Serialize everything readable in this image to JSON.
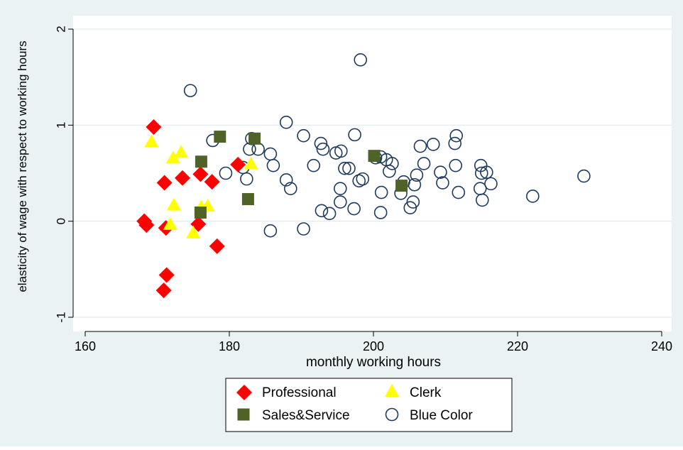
{
  "chart_data": {
    "type": "scatter",
    "title": "",
    "xlabel": "monthly working hours",
    "ylabel": "elasticity of wage with respect to working hours",
    "xlim": [
      160,
      240
    ],
    "ylim": [
      -1,
      2
    ],
    "x_ticks": [
      160,
      180,
      200,
      220,
      240
    ],
    "y_ticks": [
      -1,
      0,
      1,
      2
    ],
    "grid": "horizontal",
    "legend_position": "bottom",
    "colors": {
      "page_background": "#eaf2f3",
      "plot_background": "#ffffff",
      "gridline": "#e4eef0",
      "axis": "#000000"
    },
    "series": [
      {
        "name": "Professional",
        "marker": "diamond",
        "color": "#ff0000",
        "points": [
          [
            169.5,
            0.98
          ],
          [
            168.2,
            0.0
          ],
          [
            168.5,
            -0.04
          ],
          [
            171.0,
            0.4
          ],
          [
            171.2,
            -0.07
          ],
          [
            171.3,
            -0.56
          ],
          [
            170.9,
            -0.72
          ],
          [
            173.5,
            0.45
          ],
          [
            175.7,
            -0.03
          ],
          [
            176.0,
            0.49
          ],
          [
            177.6,
            0.41
          ],
          [
            178.3,
            -0.26
          ],
          [
            181.2,
            0.59
          ]
        ]
      },
      {
        "name": "Clerk",
        "marker": "triangle",
        "color": "#ffff00",
        "points": [
          [
            169.2,
            0.83
          ],
          [
            172.2,
            0.66
          ],
          [
            173.3,
            0.72
          ],
          [
            172.3,
            0.17
          ],
          [
            171.8,
            -0.03
          ],
          [
            175.0,
            -0.12
          ],
          [
            176.1,
            0.15
          ],
          [
            177.0,
            0.16
          ],
          [
            183.0,
            0.6
          ]
        ]
      },
      {
        "name": "Sales&Service",
        "marker": "square",
        "color": "#4f6228",
        "points": [
          [
            176.1,
            0.62
          ],
          [
            178.7,
            0.88
          ],
          [
            176.0,
            0.09
          ],
          [
            182.6,
            0.23
          ],
          [
            183.5,
            0.86
          ],
          [
            200.1,
            0.68
          ],
          [
            203.9,
            0.37
          ]
        ]
      },
      {
        "name": "Blue Color",
        "marker": "circle",
        "color": "#1f3a5f",
        "points": [
          [
            174.6,
            1.36
          ],
          [
            177.7,
            0.84
          ],
          [
            179.5,
            0.5
          ],
          [
            181.9,
            0.56
          ],
          [
            182.4,
            0.44
          ],
          [
            182.8,
            0.75
          ],
          [
            183.1,
            0.86
          ],
          [
            184.0,
            0.75
          ],
          [
            185.7,
            0.7
          ],
          [
            186.1,
            0.58
          ],
          [
            185.7,
            -0.1
          ],
          [
            187.9,
            0.43
          ],
          [
            188.5,
            0.34
          ],
          [
            187.9,
            1.03
          ],
          [
            190.3,
            0.89
          ],
          [
            190.3,
            -0.08
          ],
          [
            191.7,
            0.58
          ],
          [
            192.7,
            0.81
          ],
          [
            193.0,
            0.75
          ],
          [
            192.8,
            0.11
          ],
          [
            193.9,
            0.08
          ],
          [
            194.8,
            0.71
          ],
          [
            195.5,
            0.73
          ],
          [
            195.4,
            0.34
          ],
          [
            195.4,
            0.2
          ],
          [
            196.0,
            0.55
          ],
          [
            196.6,
            0.55
          ],
          [
            197.3,
            0.13
          ],
          [
            197.4,
            0.9
          ],
          [
            198.0,
            0.42
          ],
          [
            198.5,
            0.44
          ],
          [
            198.2,
            1.68
          ],
          [
            200.3,
            0.66
          ],
          [
            201.0,
            0.67
          ],
          [
            201.1,
            0.3
          ],
          [
            201.0,
            0.09
          ],
          [
            201.8,
            0.64
          ],
          [
            202.2,
            0.52
          ],
          [
            202.6,
            0.6
          ],
          [
            203.8,
            0.29
          ],
          [
            204.2,
            0.41
          ],
          [
            205.1,
            0.14
          ],
          [
            205.5,
            0.2
          ],
          [
            205.7,
            0.38
          ],
          [
            206.0,
            0.48
          ],
          [
            206.5,
            0.78
          ],
          [
            207.0,
            0.6
          ],
          [
            208.3,
            0.8
          ],
          [
            209.3,
            0.51
          ],
          [
            209.6,
            0.4
          ],
          [
            211.3,
            0.81
          ],
          [
            211.4,
            0.58
          ],
          [
            211.5,
            0.89
          ],
          [
            211.8,
            0.3
          ],
          [
            214.8,
            0.34
          ],
          [
            214.9,
            0.58
          ],
          [
            215.0,
            0.5
          ],
          [
            215.1,
            0.22
          ],
          [
            215.7,
            0.51
          ],
          [
            216.3,
            0.39
          ],
          [
            222.1,
            0.26
          ],
          [
            229.2,
            0.47
          ]
        ]
      }
    ]
  }
}
